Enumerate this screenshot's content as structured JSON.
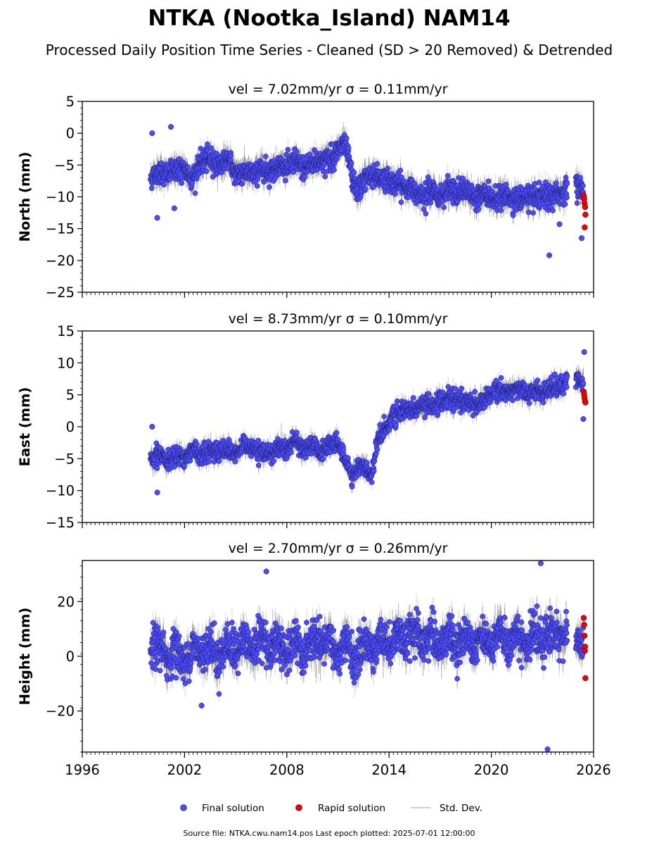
{
  "title": "NTKA (Nootka_Island) NAM14",
  "subtitle": "Processed Daily Position Time Series - Cleaned (SD > 20 Removed) & Detrended",
  "footer": "Source file: NTKA.cwu.nam14.pos  Last epoch plotted: 2025-07-01 12:00:00",
  "legend": {
    "final": "Final solution",
    "rapid": "Rapid solution",
    "std": "Std. Dev."
  },
  "colors": {
    "final": "#4b4bff",
    "final_edge": "#1a1a4a",
    "rapid": "#ee0000",
    "std": "#bdbdbd"
  },
  "chart_data": [
    {
      "type": "scatter",
      "panel": "north",
      "title": "vel = 7.02mm/yr   σ = 0.11mm/yr",
      "ylabel": "North (mm)",
      "xlim": [
        1996,
        2026
      ],
      "ylim": [
        -25,
        5
      ],
      "yticks": [
        -25,
        -20,
        -15,
        -10,
        -5,
        0,
        5
      ],
      "xticks": [
        1996,
        2002,
        2008,
        2014,
        2020,
        2026
      ],
      "xticklabels_visible": false,
      "final_series": [
        [
          2000.0,
          -7
        ],
        [
          2000.5,
          -6
        ],
        [
          2001.0,
          -6.5
        ],
        [
          2001.5,
          -5.5
        ],
        [
          2002.0,
          -6
        ],
        [
          2002.5,
          -7
        ],
        [
          2003.0,
          -4.5
        ],
        [
          2003.5,
          -4
        ],
        [
          2004.0,
          -5
        ],
        [
          2004.5,
          -4
        ],
        [
          2005.0,
          -6.5
        ],
        [
          2005.5,
          -6
        ],
        [
          2006.0,
          -6.5
        ],
        [
          2006.5,
          -5.5
        ],
        [
          2007.0,
          -6
        ],
        [
          2007.5,
          -5
        ],
        [
          2008.0,
          -5.5
        ],
        [
          2008.5,
          -4.5
        ],
        [
          2009.0,
          -5.5
        ],
        [
          2009.5,
          -4.5
        ],
        [
          2010.0,
          -4.5
        ],
        [
          2010.5,
          -4
        ],
        [
          2011.0,
          -3
        ],
        [
          2011.3,
          -1.5
        ],
        [
          2011.6,
          -3.5
        ],
        [
          2011.9,
          -8
        ],
        [
          2012.2,
          -9
        ],
        [
          2012.6,
          -7
        ],
        [
          2013.0,
          -6.5
        ],
        [
          2013.5,
          -7
        ],
        [
          2014.0,
          -7.5
        ],
        [
          2014.5,
          -8
        ],
        [
          2015.0,
          -8.5
        ],
        [
          2015.5,
          -9
        ],
        [
          2016.0,
          -9.5
        ],
        [
          2016.5,
          -9
        ],
        [
          2017.0,
          -10
        ],
        [
          2017.5,
          -9
        ],
        [
          2018.0,
          -9.5
        ],
        [
          2018.5,
          -9
        ],
        [
          2019.0,
          -10
        ],
        [
          2019.5,
          -9.5
        ],
        [
          2020.0,
          -10.5
        ],
        [
          2020.5,
          -10
        ],
        [
          2021.0,
          -10
        ],
        [
          2021.5,
          -10.5
        ],
        [
          2022.0,
          -10
        ],
        [
          2022.5,
          -10.5
        ],
        [
          2023.0,
          -10
        ],
        [
          2023.5,
          -10
        ],
        [
          2024.0,
          -9.5
        ],
        [
          2025.0,
          -8
        ],
        [
          2025.4,
          -9
        ]
      ],
      "final_outliers": [
        [
          2000.1,
          0
        ],
        [
          2001.2,
          1
        ],
        [
          2000.4,
          -13.3
        ],
        [
          2001.4,
          -11.8
        ],
        [
          2023.4,
          -19.2
        ],
        [
          2025.3,
          -16.5
        ],
        [
          2024.0,
          -14.3
        ]
      ],
      "rapid": [
        [
          2025.42,
          -9.8
        ],
        [
          2025.45,
          -10.3
        ],
        [
          2025.47,
          -11
        ],
        [
          2025.5,
          -11.6
        ],
        [
          2025.52,
          -12.8
        ],
        [
          2025.48,
          -14.8
        ]
      ],
      "noise_sd": 1.6,
      "std_dev": 1.4
    },
    {
      "type": "scatter",
      "panel": "east",
      "title": "vel = 8.73mm/yr   σ = 0.10mm/yr",
      "ylabel": "East (mm)",
      "xlim": [
        1996,
        2026
      ],
      "ylim": [
        -15,
        15
      ],
      "yticks": [
        -15,
        -10,
        -5,
        0,
        5,
        10,
        15
      ],
      "xticks": [
        1996,
        2002,
        2008,
        2014,
        2020,
        2026
      ],
      "xticklabels_visible": false,
      "final_series": [
        [
          2000.0,
          -5
        ],
        [
          2000.5,
          -4.5
        ],
        [
          2001.0,
          -5.5
        ],
        [
          2001.5,
          -4
        ],
        [
          2002.0,
          -5
        ],
        [
          2002.5,
          -3.5
        ],
        [
          2003.0,
          -4.5
        ],
        [
          2003.5,
          -3.5
        ],
        [
          2004.0,
          -4
        ],
        [
          2004.5,
          -3.5
        ],
        [
          2005.0,
          -4.5
        ],
        [
          2005.5,
          -3
        ],
        [
          2006.0,
          -3.5
        ],
        [
          2006.5,
          -4
        ],
        [
          2007.0,
          -4.5
        ],
        [
          2007.5,
          -3
        ],
        [
          2008.0,
          -3.5
        ],
        [
          2008.5,
          -2
        ],
        [
          2009.0,
          -4
        ],
        [
          2009.5,
          -2.5
        ],
        [
          2010.0,
          -4
        ],
        [
          2010.5,
          -3
        ],
        [
          2011.0,
          -2.5
        ],
        [
          2011.4,
          -5
        ],
        [
          2011.8,
          -7.5
        ],
        [
          2012.2,
          -6.5
        ],
        [
          2012.6,
          -6
        ],
        [
          2013.0,
          -8
        ],
        [
          2013.3,
          -2
        ],
        [
          2013.8,
          0
        ],
        [
          2014.2,
          1.5
        ],
        [
          2014.6,
          2
        ],
        [
          2015.0,
          2.5
        ],
        [
          2015.5,
          3
        ],
        [
          2016.0,
          3
        ],
        [
          2016.5,
          3.5
        ],
        [
          2017.0,
          4
        ],
        [
          2017.5,
          4.5
        ],
        [
          2018.0,
          4
        ],
        [
          2018.5,
          4
        ],
        [
          2019.0,
          3.5
        ],
        [
          2019.5,
          4
        ],
        [
          2020.0,
          5
        ],
        [
          2020.5,
          6
        ],
        [
          2021.0,
          5.5
        ],
        [
          2021.5,
          6
        ],
        [
          2022.0,
          5.5
        ],
        [
          2022.5,
          5.5
        ],
        [
          2023.0,
          5.5
        ],
        [
          2023.5,
          6
        ],
        [
          2024.0,
          6.5
        ],
        [
          2025.0,
          7.5
        ],
        [
          2025.4,
          7
        ]
      ],
      "final_outliers": [
        [
          2000.1,
          0
        ],
        [
          2000.4,
          -10.3
        ],
        [
          2025.45,
          11.7
        ],
        [
          2025.4,
          1.2
        ]
      ],
      "rapid": [
        [
          2025.42,
          5.5
        ],
        [
          2025.45,
          5
        ],
        [
          2025.47,
          4.5
        ],
        [
          2025.5,
          4
        ],
        [
          2025.52,
          3.8
        ]
      ],
      "noise_sd": 1.3,
      "std_dev": 1.1
    },
    {
      "type": "scatter",
      "panel": "height",
      "title": "vel = 2.70mm/yr   σ = 0.26mm/yr",
      "ylabel": "Height (mm)",
      "xlim": [
        1996,
        2026
      ],
      "ylim": [
        -35,
        35
      ],
      "yticks": [
        -20,
        0,
        20
      ],
      "xticks": [
        1996,
        2002,
        2008,
        2014,
        2020,
        2026
      ],
      "xticklabels": [
        "1996",
        "2002",
        "2008",
        "2014",
        "2020",
        "2026"
      ],
      "xticklabels_visible": true,
      "final_series": [
        [
          2000.0,
          2
        ],
        [
          2000.5,
          5
        ],
        [
          2001.0,
          -2
        ],
        [
          2001.5,
          4
        ],
        [
          2002.0,
          -4
        ],
        [
          2002.5,
          4
        ],
        [
          2003.0,
          0
        ],
        [
          2003.5,
          6
        ],
        [
          2004.0,
          -2
        ],
        [
          2004.5,
          6
        ],
        [
          2005.0,
          0
        ],
        [
          2005.5,
          7
        ],
        [
          2006.0,
          1
        ],
        [
          2006.5,
          8
        ],
        [
          2007.0,
          2
        ],
        [
          2007.5,
          7
        ],
        [
          2008.0,
          -1
        ],
        [
          2008.5,
          6
        ],
        [
          2009.0,
          0
        ],
        [
          2009.5,
          7
        ],
        [
          2010.0,
          2
        ],
        [
          2010.5,
          8
        ],
        [
          2011.0,
          -2
        ],
        [
          2011.5,
          6
        ],
        [
          2012.0,
          -3
        ],
        [
          2012.5,
          6
        ],
        [
          2013.0,
          1
        ],
        [
          2013.5,
          8
        ],
        [
          2014.0,
          3
        ],
        [
          2014.5,
          10
        ],
        [
          2015.0,
          4
        ],
        [
          2015.5,
          10
        ],
        [
          2016.0,
          3
        ],
        [
          2016.5,
          9
        ],
        [
          2017.0,
          3
        ],
        [
          2017.5,
          9
        ],
        [
          2018.0,
          2
        ],
        [
          2018.5,
          9
        ],
        [
          2019.0,
          4
        ],
        [
          2019.5,
          9
        ],
        [
          2020.0,
          3
        ],
        [
          2020.5,
          10
        ],
        [
          2021.0,
          3
        ],
        [
          2021.5,
          9
        ],
        [
          2022.0,
          3
        ],
        [
          2022.5,
          8
        ],
        [
          2023.0,
          5
        ],
        [
          2023.5,
          10
        ],
        [
          2024.0,
          7
        ],
        [
          2025.0,
          6
        ],
        [
          2025.4,
          4
        ]
      ],
      "final_outliers": [
        [
          2006.8,
          31
        ],
        [
          2022.9,
          34
        ],
        [
          2023.3,
          -34
        ],
        [
          2003.0,
          -18
        ]
      ],
      "rapid": [
        [
          2025.42,
          14
        ],
        [
          2025.45,
          11.5
        ],
        [
          2025.47,
          7.5
        ],
        [
          2025.5,
          3.5
        ],
        [
          2025.49,
          2
        ],
        [
          2025.52,
          -8
        ]
      ],
      "noise_sd": 6.5,
      "std_dev": 4
    }
  ]
}
